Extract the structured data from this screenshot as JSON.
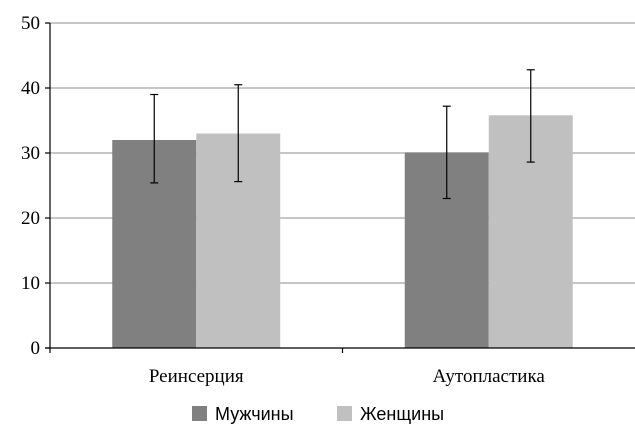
{
  "chart_data": {
    "type": "bar",
    "categories": [
      "Реинсерция",
      "Аутопластика"
    ],
    "series": [
      {
        "name": "Мужчины",
        "values": [
          32.0,
          30.1
        ],
        "error_low": [
          25.4,
          23.0
        ],
        "error_high": [
          39.0,
          37.2
        ],
        "color": "#808080"
      },
      {
        "name": "Женщины",
        "values": [
          33.0,
          35.8
        ],
        "error_low": [
          25.6,
          28.6
        ],
        "error_high": [
          40.5,
          42.8
        ],
        "color": "#c0c0c0"
      }
    ],
    "yticks": [
      "0",
      "10",
      "20",
      "30",
      "40",
      "50"
    ],
    "ylim": [
      0,
      50
    ],
    "grid": true,
    "legend_position": "bottom"
  }
}
